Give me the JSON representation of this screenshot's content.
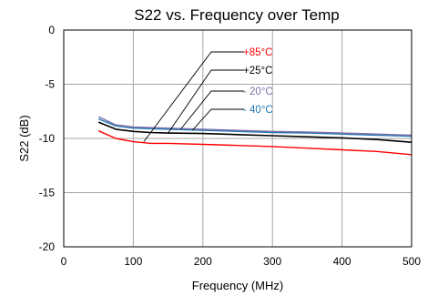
{
  "chart_data": {
    "type": "line",
    "title": "S22 vs. Frequency over Temp",
    "xlabel": "Frequency (MHz)",
    "ylabel": "S22 (dB)",
    "xlim": [
      0,
      500
    ],
    "ylim": [
      -20,
      0
    ],
    "x_ticks": [
      0,
      100,
      200,
      300,
      400,
      500
    ],
    "y_ticks": [
      0,
      -5,
      -10,
      -15,
      -20
    ],
    "grid": true,
    "legend_placement": "top-center",
    "series": [
      {
        "name": "+85°C",
        "color": "#ff0000",
        "x": [
          50,
          75,
          100,
          125,
          150,
          200,
          250,
          300,
          350,
          400,
          450,
          500
        ],
        "y": [
          -9.3,
          -10.0,
          -10.3,
          -10.45,
          -10.45,
          -10.55,
          -10.65,
          -10.75,
          -10.9,
          -11.05,
          -11.2,
          -11.5
        ]
      },
      {
        "name": "+25°C",
        "color": "#000000",
        "x": [
          50,
          75,
          100,
          125,
          150,
          200,
          250,
          300,
          350,
          400,
          450,
          500
        ],
        "y": [
          -8.5,
          -9.15,
          -9.35,
          -9.45,
          -9.5,
          -9.55,
          -9.65,
          -9.75,
          -9.85,
          -9.95,
          -10.1,
          -10.35
        ]
      },
      {
        "name": "- 20°C",
        "color": "#7f6fa8",
        "x": [
          50,
          75,
          100,
          125,
          150,
          200,
          250,
          300,
          350,
          400,
          450,
          500
        ],
        "y": [
          -8.0,
          -8.75,
          -8.95,
          -9.0,
          -9.05,
          -9.15,
          -9.25,
          -9.35,
          -9.4,
          -9.5,
          -9.6,
          -9.7
        ]
      },
      {
        "name": "- 40°C",
        "color": "#1f78b4",
        "x": [
          50,
          75,
          100,
          125,
          150,
          200,
          250,
          300,
          350,
          400,
          450,
          500
        ],
        "y": [
          -8.2,
          -8.85,
          -9.05,
          -9.1,
          -9.15,
          -9.25,
          -9.35,
          -9.45,
          -9.5,
          -9.6,
          -9.7,
          -9.8
        ]
      }
    ]
  }
}
